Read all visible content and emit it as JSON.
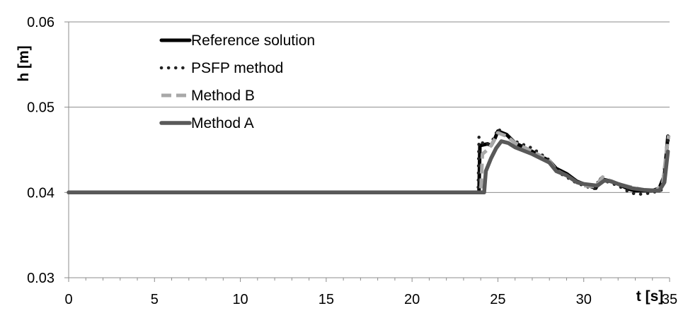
{
  "chart_data": {
    "type": "line",
    "title": "",
    "xlabel": "t [s]",
    "ylabel": "h [m]",
    "xlim": [
      0,
      35
    ],
    "ylim": [
      0.03,
      0.06
    ],
    "x_ticks": [
      0,
      5,
      10,
      15,
      20,
      25,
      30,
      35
    ],
    "y_ticks": [
      0.03,
      0.04,
      0.05,
      0.06
    ],
    "x_tick_labels": [
      "0",
      "5",
      "10",
      "15",
      "20",
      "25",
      "30",
      "35"
    ],
    "y_tick_labels": [
      "0.03",
      "0.04",
      "0.05",
      "0.06"
    ],
    "grid": "horizontal",
    "legend_position": "top-left",
    "series": [
      {
        "name": "Reference solution",
        "color": "#000000",
        "style": "solid-thick",
        "points": [
          [
            0,
            0.04
          ],
          [
            23.9,
            0.04
          ],
          [
            23.95,
            0.0455
          ],
          [
            24.4,
            0.0457
          ],
          [
            24.6,
            0.0455
          ],
          [
            24.8,
            0.0462
          ],
          [
            25.0,
            0.0472
          ],
          [
            25.5,
            0.0468
          ],
          [
            26,
            0.0458
          ],
          [
            27,
            0.0448
          ],
          [
            28,
            0.0437
          ],
          [
            28.4,
            0.0428
          ],
          [
            29,
            0.0422
          ],
          [
            29.6,
            0.0413
          ],
          [
            30,
            0.041
          ],
          [
            30.7,
            0.0405
          ],
          [
            31.0,
            0.0416
          ],
          [
            31.4,
            0.0414
          ],
          [
            32,
            0.041
          ],
          [
            32.6,
            0.0404
          ],
          [
            33,
            0.0402
          ],
          [
            34,
            0.0402
          ],
          [
            34.4,
            0.0405
          ],
          [
            34.7,
            0.042
          ],
          [
            34.9,
            0.0466
          ]
        ]
      },
      {
        "name": "PSFP method",
        "color": "#222222",
        "style": "dotted",
        "points": [
          [
            0,
            0.04
          ],
          [
            23.85,
            0.04
          ],
          [
            23.9,
            0.0465
          ],
          [
            24.2,
            0.0455
          ],
          [
            24.5,
            0.0458
          ],
          [
            24.8,
            0.0464
          ],
          [
            25.0,
            0.0475
          ],
          [
            25.5,
            0.0465
          ],
          [
            26,
            0.046
          ],
          [
            27,
            0.0452
          ],
          [
            27.5,
            0.0445
          ],
          [
            28,
            0.0438
          ],
          [
            28.4,
            0.0425
          ],
          [
            29,
            0.0418
          ],
          [
            29.5,
            0.0412
          ],
          [
            30,
            0.0408
          ],
          [
            30.6,
            0.0404
          ],
          [
            31,
            0.0418
          ],
          [
            31.3,
            0.0413
          ],
          [
            32,
            0.0408
          ],
          [
            32.5,
            0.0402
          ],
          [
            33,
            0.0398
          ],
          [
            33.5,
            0.0398
          ],
          [
            34,
            0.04
          ],
          [
            34.5,
            0.0402
          ],
          [
            34.8,
            0.044
          ],
          [
            34.95,
            0.0467
          ]
        ]
      },
      {
        "name": "Method B",
        "color": "#a8a8a8",
        "style": "dashed",
        "points": [
          [
            0,
            0.04
          ],
          [
            24.0,
            0.04
          ],
          [
            24.1,
            0.0445
          ],
          [
            24.5,
            0.0452
          ],
          [
            24.8,
            0.0462
          ],
          [
            25.0,
            0.047
          ],
          [
            25.5,
            0.0466
          ],
          [
            26,
            0.0458
          ],
          [
            27,
            0.0448
          ],
          [
            28,
            0.0437
          ],
          [
            28.4,
            0.0426
          ],
          [
            29,
            0.042
          ],
          [
            29.6,
            0.0412
          ],
          [
            30,
            0.0408
          ],
          [
            30.7,
            0.0407
          ],
          [
            31.1,
            0.0418
          ],
          [
            31.5,
            0.0414
          ],
          [
            32,
            0.041
          ],
          [
            32.8,
            0.0406
          ],
          [
            33.5,
            0.0403
          ],
          [
            34.2,
            0.0402
          ],
          [
            34.6,
            0.041
          ],
          [
            34.8,
            0.0445
          ],
          [
            34.95,
            0.0467
          ]
        ]
      },
      {
        "name": "Method A",
        "color": "#595959",
        "style": "solid",
        "points": [
          [
            0,
            0.04
          ],
          [
            24.2,
            0.04
          ],
          [
            24.3,
            0.0425
          ],
          [
            24.6,
            0.044
          ],
          [
            24.9,
            0.0452
          ],
          [
            25.2,
            0.046
          ],
          [
            25.6,
            0.0458
          ],
          [
            26,
            0.0453
          ],
          [
            27,
            0.0445
          ],
          [
            28,
            0.0435
          ],
          [
            28.4,
            0.0425
          ],
          [
            29,
            0.042
          ],
          [
            29.6,
            0.0412
          ],
          [
            30,
            0.041
          ],
          [
            30.8,
            0.0408
          ],
          [
            31.2,
            0.0414
          ],
          [
            31.6,
            0.0413
          ],
          [
            32,
            0.041
          ],
          [
            32.8,
            0.0405
          ],
          [
            33.5,
            0.0403
          ],
          [
            34.4,
            0.0402
          ],
          [
            34.7,
            0.0412
          ],
          [
            34.9,
            0.0448
          ]
        ]
      }
    ]
  }
}
